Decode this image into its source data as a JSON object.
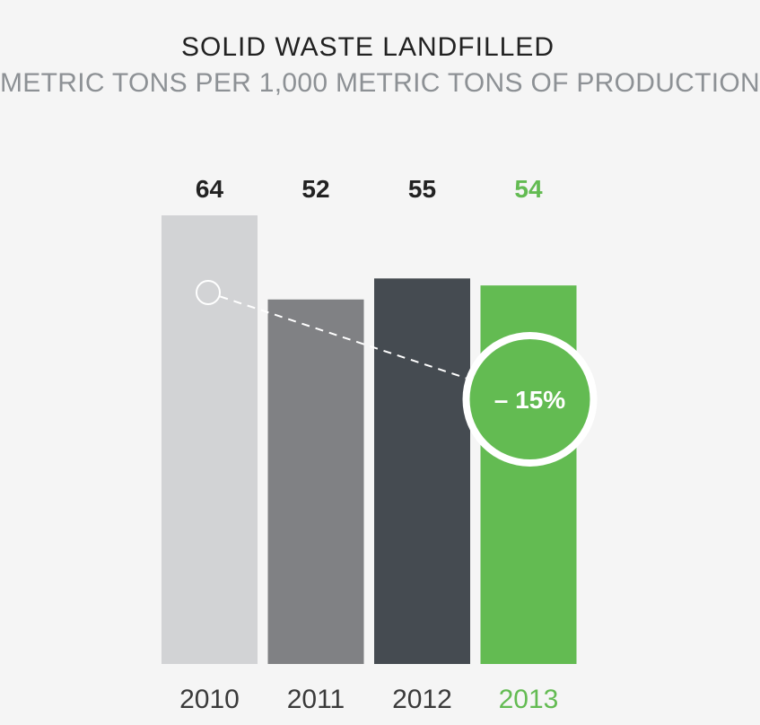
{
  "chart_data": {
    "type": "bar",
    "title": "SOLID WASTE LANDFILLED",
    "subtitle": "METRIC TONS PER 1,000 METRIC TONS OF PRODUCTION",
    "categories": [
      "2010",
      "2011",
      "2012",
      "2013"
    ],
    "values": [
      64,
      52,
      55,
      54
    ],
    "value_labels": [
      "64",
      "52",
      "55",
      "54"
    ],
    "bar_colors": [
      "#d2d3d5",
      "#808184",
      "#454b51",
      "#63bb52"
    ],
    "label_colors": [
      "#222222",
      "#222222",
      "#222222",
      "#63bb52"
    ],
    "xlabel": "",
    "ylabel": "",
    "grid": false,
    "annotation": {
      "text": "– 15%",
      "from_category": "2010",
      "to_category": "2013"
    }
  }
}
